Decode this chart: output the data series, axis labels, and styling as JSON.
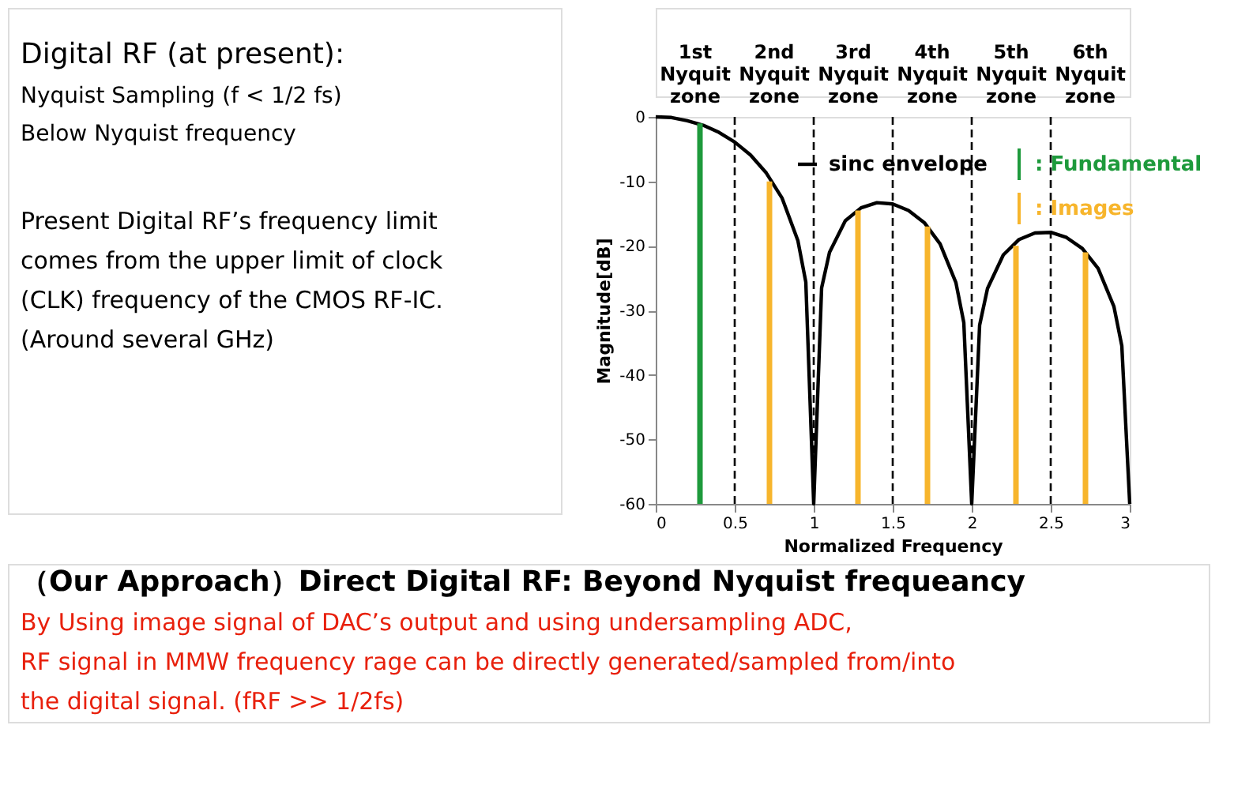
{
  "chart_data": {
    "type": "line",
    "xlabel": "Normalized Frequency",
    "ylabel": "Magnitude[dB]",
    "xlim": [
      0,
      3
    ],
    "xticks": [
      0,
      0.5,
      1,
      1.5,
      2,
      2.5,
      3
    ],
    "ylim": [
      -60,
      0
    ],
    "yticks": [
      -60,
      -50,
      -40,
      -30,
      -20,
      -10,
      0
    ],
    "grid": false,
    "legend": "top right",
    "series": [
      {
        "name": "sinc envelope",
        "color": "#000000",
        "x": [
          0,
          0.1,
          0.2,
          0.3,
          0.4,
          0.5,
          0.6,
          0.7,
          0.8,
          0.9,
          0.95,
          1,
          1.05,
          1.1,
          1.2,
          1.3,
          1.4,
          1.5,
          1.6,
          1.7,
          1.8,
          1.9,
          1.95,
          2,
          2.05,
          2.1,
          2.2,
          2.3,
          2.4,
          2.5,
          2.6,
          2.7,
          2.8,
          2.9,
          2.95,
          3
        ],
        "values": [
          0,
          -0.1,
          -0.6,
          -1.3,
          -2.4,
          -3.9,
          -5.9,
          -8.7,
          -12.6,
          -19.2,
          -25.6,
          -60,
          -26.5,
          -21,
          -16.1,
          -14.1,
          -13.3,
          -13.5,
          -14.5,
          -16.4,
          -19.7,
          -25.7,
          -31.9,
          -60,
          -32.3,
          -26.6,
          -21.4,
          -19,
          -18,
          -17.9,
          -18.7,
          -20.4,
          -23.5,
          -29.4,
          -35.5,
          -60
        ]
      },
      {
        "name": ": Fundamental",
        "type": "bar",
        "color": "#1e9a3c",
        "x": [
          0.28
        ],
        "base": [
          -60
        ],
        "values": [
          59
        ]
      },
      {
        "name": ": Images",
        "type": "bar",
        "color": "#f7b52c",
        "x": [
          0.72,
          1.28,
          1.72,
          2.28,
          2.72
        ],
        "base": [
          -60,
          -60,
          -60,
          -60,
          -60
        ],
        "values": [
          50,
          45.5,
          43,
          40,
          39
        ]
      }
    ],
    "ref_lines": [
      {
        "axis": "x",
        "value": 0.5,
        "line_style": "dashed",
        "color": "#000000"
      },
      {
        "axis": "x",
        "value": 1,
        "line_style": "dashed",
        "color": "#000000"
      },
      {
        "axis": "x",
        "value": 1.5,
        "line_style": "dashed",
        "color": "#000000"
      },
      {
        "axis": "x",
        "value": 2,
        "line_style": "dashed",
        "color": "#000000"
      },
      {
        "axis": "x",
        "value": 2.5,
        "line_style": "dashed",
        "color": "#000000"
      }
    ],
    "annotations": [
      "1st Nyquit zone",
      "2nd Nyquit zone",
      "3rd Nyquit zone",
      "4th Nyquit zone",
      "5th Nyquit zone",
      "6th Nyquit zone",
      "Digital RF (at present):",
      "Nyquist Sampling  (f < 1/2 fs)",
      "Below Nyquist frequency",
      "Present Digital RF’s frequency limit",
      "comes from the upper limit of clock",
      "(CLK) frequency of the CMOS RF-IC.",
      "(Around several GHz)",
      "（Our Approach）Direct Digital RF: Beyond Nyquist frequeancy",
      "By Using image signal of DAC’s output and using undersampling ADC,",
      "RF signal in MMW frequency rage can be directly generated/sampled from/into",
      "the digital signal.   (fRF >> 1/2fs)"
    ]
  }
}
